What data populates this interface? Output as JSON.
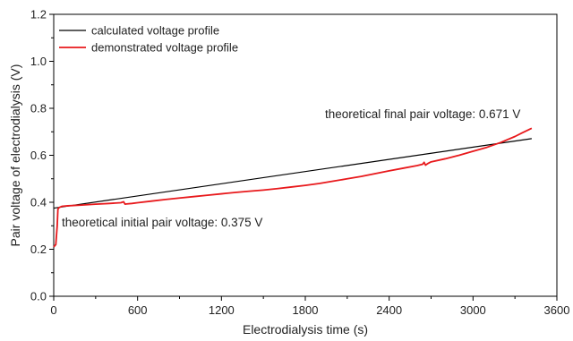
{
  "chart_data": {
    "type": "line",
    "title": "",
    "xlabel": "Electrodialysis time (s)",
    "ylabel": "Pair voltage of electrodialysis (V)",
    "xlim": [
      0,
      3600
    ],
    "ylim": [
      0.0,
      1.2
    ],
    "xticks": [
      0,
      600,
      1200,
      1800,
      2400,
      3000,
      3600
    ],
    "yticks": [
      0.0,
      0.2,
      0.4,
      0.6,
      0.8,
      1.0,
      1.2
    ],
    "xtick_labels": [
      "0",
      "600",
      "1200",
      "1800",
      "2400",
      "3000",
      "3600"
    ],
    "ytick_labels": [
      "0.0",
      "0.2",
      "0.4",
      "0.6",
      "0.8",
      "1.0",
      "1.2"
    ],
    "grid": false,
    "legend_position": "top-left",
    "series": [
      {
        "name": "calculated voltage profile",
        "color": "#000000",
        "x": [
          0,
          3420
        ],
        "y": [
          0.375,
          0.671
        ]
      },
      {
        "name": "demonstrated voltage profile",
        "color": "#e8191c",
        "x": [
          0,
          15,
          25,
          30,
          35,
          40,
          60,
          100,
          200,
          300,
          400,
          480,
          500,
          510,
          520,
          560,
          600,
          700,
          800,
          900,
          1000,
          1100,
          1200,
          1300,
          1400,
          1500,
          1600,
          1700,
          1800,
          1900,
          2000,
          2100,
          2200,
          2300,
          2400,
          2500,
          2600,
          2640,
          2650,
          2660,
          2680,
          2700,
          2800,
          2900,
          3000,
          3100,
          3200,
          3300,
          3350,
          3420
        ],
        "y": [
          0.21,
          0.22,
          0.3,
          0.37,
          0.375,
          0.378,
          0.383,
          0.385,
          0.388,
          0.392,
          0.395,
          0.398,
          0.402,
          0.392,
          0.393,
          0.395,
          0.398,
          0.405,
          0.412,
          0.418,
          0.424,
          0.43,
          0.436,
          0.442,
          0.447,
          0.452,
          0.458,
          0.465,
          0.472,
          0.48,
          0.49,
          0.5,
          0.51,
          0.522,
          0.534,
          0.545,
          0.556,
          0.562,
          0.57,
          0.558,
          0.566,
          0.572,
          0.585,
          0.6,
          0.617,
          0.634,
          0.655,
          0.68,
          0.695,
          0.715
        ]
      }
    ],
    "annotations": [
      {
        "id": "final",
        "text": "theoretical final pair voltage: 0.671 V"
      },
      {
        "id": "initial",
        "text": "theoretical initial pair voltage: 0.375 V"
      }
    ]
  }
}
